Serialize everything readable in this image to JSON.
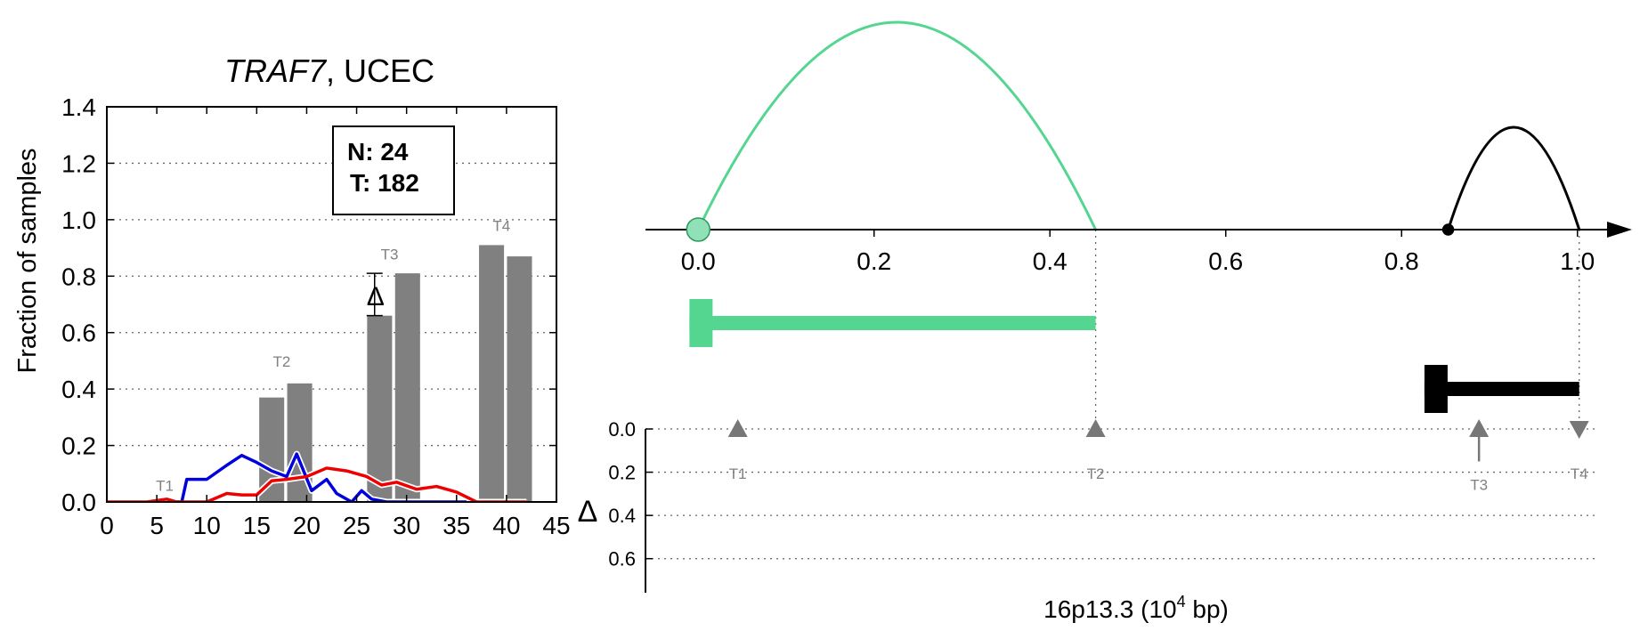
{
  "chart_data": [
    {
      "type": "bar",
      "title_gene": "TRAF7",
      "title_rest": ", UCEC",
      "xlabel": "",
      "ylabel": "Fraction of samples",
      "xlim": [
        0,
        45
      ],
      "ylim": [
        0,
        1.4
      ],
      "xticks": [
        "0",
        "5",
        "10",
        "15",
        "20",
        "25",
        "30",
        "35",
        "40",
        "45"
      ],
      "yticks": [
        "0.0",
        "0.2",
        "0.4",
        "0.6",
        "0.8",
        "1.0",
        "1.2",
        "1.4"
      ],
      "grid": "horizontal-dotted",
      "stats": {
        "n_label": "N: 24",
        "t_label": "T: 182"
      },
      "bar_groups": [
        {
          "label": "T1",
          "label_x": 5.8,
          "label_y": 0.04,
          "bars": []
        },
        {
          "label": "T2",
          "label_x": 17.5,
          "label_y": 0.48,
          "bars": [
            {
              "x": 16.5,
              "value": 0.37
            },
            {
              "x": 19.3,
              "value": 0.42
            }
          ]
        },
        {
          "label": "T3",
          "label_x": 28.3,
          "label_y": 0.86,
          "bars": [
            {
              "x": 27.3,
              "value": 0.66
            },
            {
              "x": 30.1,
              "value": 0.81
            }
          ]
        },
        {
          "label": "T4",
          "label_x": 39.5,
          "label_y": 0.96,
          "bars": [
            {
              "x": 38.5,
              "value": 0.91
            },
            {
              "x": 41.3,
              "value": 0.87
            }
          ]
        }
      ],
      "delta_marker": {
        "label": "Δ",
        "x": 26.8,
        "y_low": 0.66,
        "y_high": 0.81
      },
      "series": [
        {
          "color": "#0000dd",
          "x": [
            6.5,
            7.5,
            8.0,
            10.0,
            12.0,
            13.5,
            15.0,
            16.5,
            18.0,
            19.0,
            20.5,
            22.0,
            23.0,
            24.5,
            25.5,
            26.5,
            28.0,
            30.0,
            33.0,
            36.0
          ],
          "y": [
            0.0,
            0.0,
            0.08,
            0.08,
            0.13,
            0.165,
            0.14,
            0.11,
            0.09,
            0.17,
            0.04,
            0.08,
            0.03,
            0.0,
            0.04,
            0.01,
            0.0,
            0.0,
            0.0,
            0.0
          ]
        },
        {
          "color": "#ee0000",
          "x": [
            0,
            4,
            6,
            7,
            10,
            12,
            13.5,
            15,
            16.5,
            18,
            20,
            22,
            24,
            26,
            27.5,
            29,
            31,
            33,
            35,
            37,
            39,
            41,
            42
          ],
          "y": [
            0.0,
            0.0,
            0.01,
            0.0,
            0.0,
            0.03,
            0.025,
            0.025,
            0.075,
            0.08,
            0.09,
            0.12,
            0.11,
            0.09,
            0.06,
            0.07,
            0.045,
            0.055,
            0.035,
            0.0,
            0.0,
            0.0,
            0.0
          ]
        }
      ]
    },
    {
      "type": "diagram",
      "xlabel_prefix": "16p13.3 (10",
      "xlabel_exp": "4",
      "xlabel_suffix": " bp)",
      "xlim": [
        -0.06,
        1.06
      ],
      "xticks": [
        "0.0",
        "0.2",
        "0.4",
        "0.6",
        "0.8",
        "1.0"
      ],
      "arcs": [
        {
          "color": "#55d690",
          "start": 0.0,
          "end": 0.452,
          "height": "tall"
        },
        {
          "color": "#000000",
          "start": 0.853,
          "end": 1.002,
          "height": "short"
        }
      ],
      "arc_points": [
        {
          "x": 0.0,
          "fill": "#90e0b8",
          "stroke": "#2a9a5a",
          "shape": "open-circle"
        },
        {
          "x": 0.853,
          "fill": "#000000",
          "stroke": "#000000",
          "shape": "dot"
        }
      ],
      "gene_models": [
        {
          "color": "#55d690",
          "start": -0.01,
          "end": 0.452,
          "strand": "left"
        },
        {
          "color": "#000000",
          "start": 0.826,
          "end": 1.002,
          "strand": "left"
        }
      ],
      "guide_lines_x": [
        0.452,
        1.002
      ],
      "delta_axis": {
        "ylabel": "Δ",
        "ylim": [
          0,
          0.7
        ],
        "yticks": [
          "0.0",
          "0.2",
          "0.4",
          "0.6"
        ],
        "markers": [
          {
            "label": "T1",
            "x": 0.045,
            "delta": 0.0,
            "dir": "up"
          },
          {
            "label": "T2",
            "x": 0.452,
            "delta": 0.0,
            "dir": "up"
          },
          {
            "label": "T3",
            "x": 0.888,
            "delta": 0.15,
            "dir": "up"
          },
          {
            "label": "T4",
            "x": 1.002,
            "delta": 0.0,
            "dir": "down"
          }
        ]
      }
    }
  ]
}
